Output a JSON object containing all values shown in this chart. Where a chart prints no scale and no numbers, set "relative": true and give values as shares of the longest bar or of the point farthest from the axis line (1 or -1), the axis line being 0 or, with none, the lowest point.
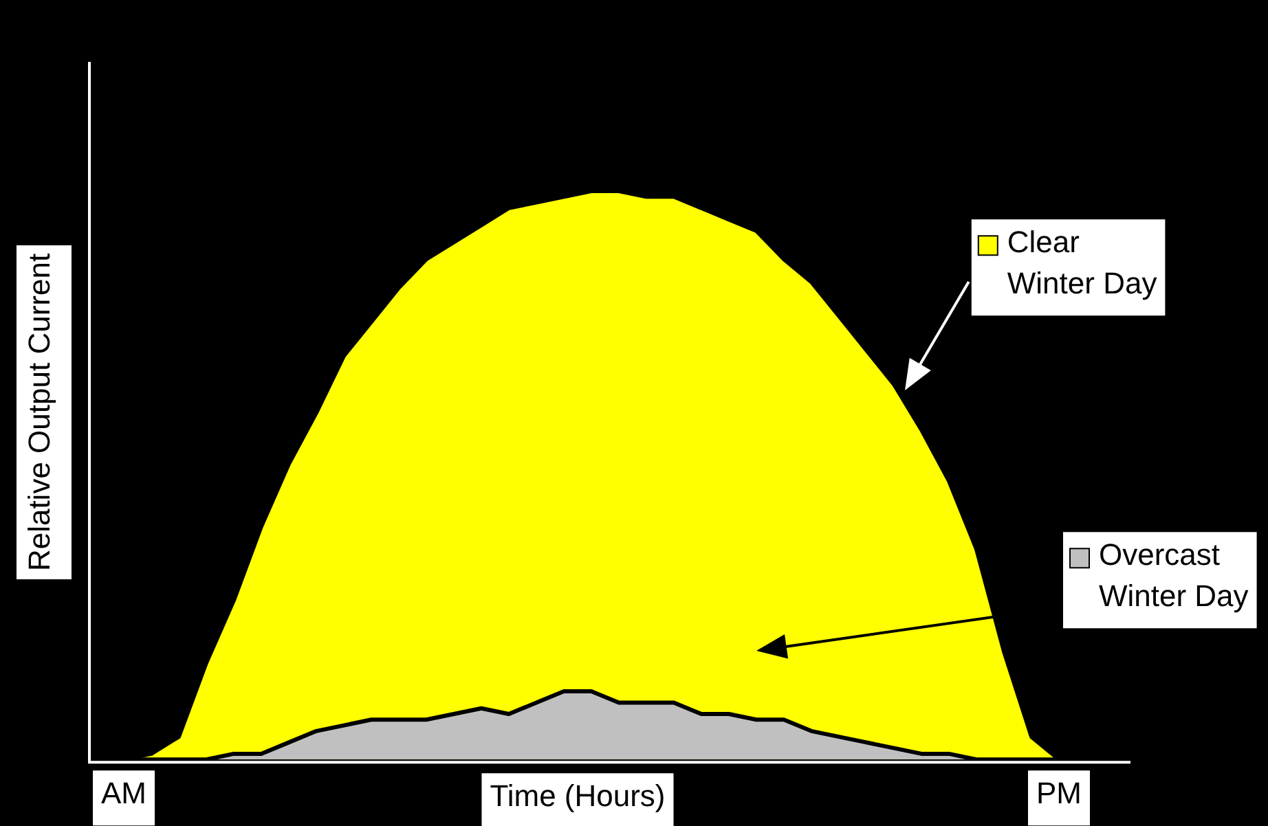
{
  "chart_data": {
    "type": "area",
    "relative": true,
    "xlabel": "Time (Hours)",
    "ylabel": "Relative Output Current",
    "legend": "right",
    "categories": [
      null,
      "AM",
      null,
      null,
      null,
      null,
      null,
      null,
      null,
      null,
      null,
      null,
      null,
      null,
      null,
      null,
      null,
      null,
      null,
      null,
      null,
      null,
      null,
      null,
      null,
      null,
      null,
      null,
      null,
      null,
      null,
      null,
      null,
      null,
      null,
      "PM",
      null,
      null
    ],
    "series": [
      {
        "name": "Clear Winter Day",
        "color": "#ffff00",
        "values": [
          0,
          0,
          0.01,
          0.04,
          0.17,
          0.28,
          0.41,
          0.52,
          0.61,
          0.71,
          0.77,
          0.83,
          0.88,
          0.91,
          0.94,
          0.97,
          0.98,
          0.99,
          1,
          1,
          0.99,
          0.99,
          0.97,
          0.95,
          0.93,
          0.88,
          0.84,
          0.78,
          0.72,
          0.66,
          0.58,
          0.49,
          0.37,
          0.19,
          0.04,
          0,
          0,
          0
        ]
      },
      {
        "name": "Overcast Winter Day",
        "color": "#c0c0c0",
        "values": [
          0,
          0,
          0,
          0,
          0,
          0.01,
          0.01,
          0.03,
          0.05,
          0.06,
          0.07,
          0.07,
          0.07,
          0.08,
          0.09,
          0.08,
          0.1,
          0.12,
          0.12,
          0.1,
          0.1,
          0.1,
          0.08,
          0.08,
          0.07,
          0.07,
          0.05,
          0.04,
          0.03,
          0.02,
          0.01,
          0.01,
          0,
          0,
          0,
          0,
          0,
          0
        ]
      }
    ]
  }
}
